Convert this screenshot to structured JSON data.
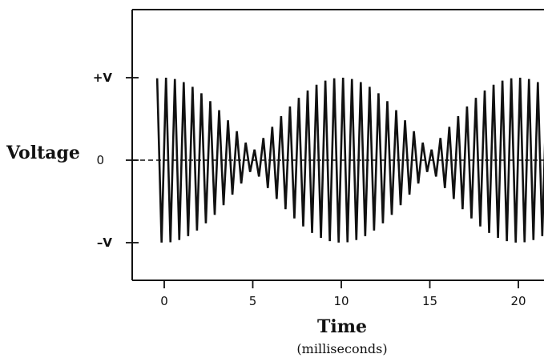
{
  "chart_data": {
    "type": "line",
    "title": "",
    "xlabel": "Time",
    "xlabel_sub": "(milliseconds)",
    "ylabel": "Voltage",
    "x_ticks": [
      0,
      5,
      10,
      15,
      20
    ],
    "y_ticks": [
      {
        "value": 1,
        "label": "+V"
      },
      {
        "value": 0,
        "label": "0"
      },
      {
        "value": -1,
        "label": "–V"
      }
    ],
    "xlim": [
      -1.6,
      22.5
    ],
    "ylim": [
      -1.55,
      1.55
    ],
    "grid": false,
    "zero_line": "dashed",
    "series": [
      {
        "name": "",
        "x_start": -0.4,
        "x_end": 21.9,
        "carrier_period_ms": 0.5,
        "envelope_period_ms": 10,
        "envelope_peak_x": [
          0,
          10,
          20
        ],
        "envelope_min_x": [
          5,
          15
        ],
        "amplitude_max": 1.0,
        "amplitude_min": 0.1
      }
    ]
  }
}
